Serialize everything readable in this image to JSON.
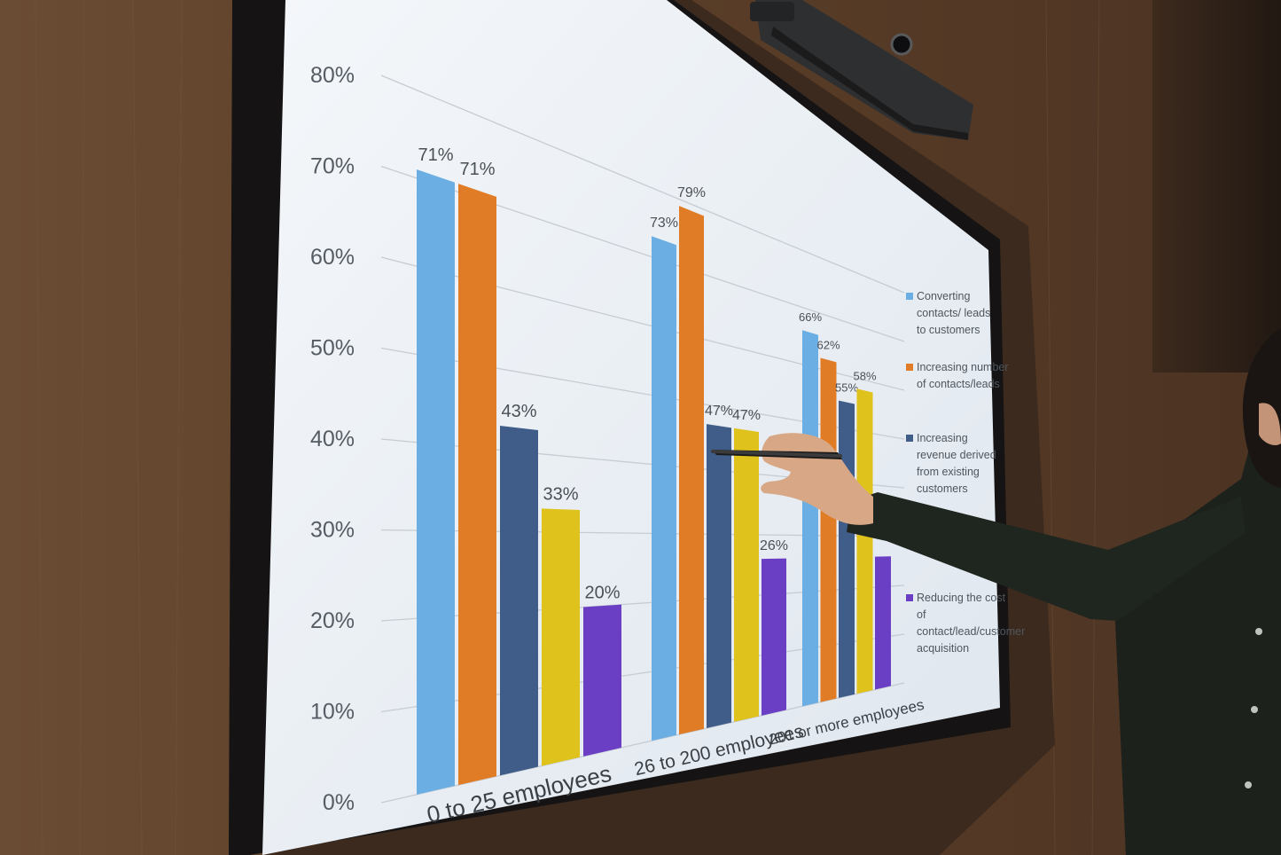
{
  "scene": {
    "description_colors": {
      "wall": "#5b3f29",
      "bezel": "#151313",
      "screen": "#e9eef3",
      "shirt": "#1c211c",
      "skin": "#d8a886"
    }
  },
  "chart_data": {
    "type": "bar",
    "categories": [
      "0 to 25 employees",
      "26 to 200 employees",
      "201 or more employees"
    ],
    "series": [
      {
        "name": "Converting contacts/ leads to customers",
        "color": "#6aaee4",
        "values": [
          71,
          73,
          66
        ]
      },
      {
        "name": "Increasing number of contacts/leads",
        "color": "#e07c25",
        "values": [
          71,
          79,
          62
        ]
      },
      {
        "name": "Increasing revenue derived from existing customers",
        "color": "#3f5d88",
        "values": [
          43,
          47,
          55
        ]
      },
      {
        "name": "",
        "color": "#dfc31c",
        "values": [
          33,
          47,
          58
        ]
      },
      {
        "name": "Reducing the cost of contact/lead/customer acquisition",
        "color": "#6b3fc4",
        "values": [
          20,
          26,
          26
        ]
      }
    ],
    "data_labels": [
      [
        "71%",
        "71%",
        "43%",
        "33%",
        "20%"
      ],
      [
        "73%",
        "79%",
        "47%",
        "47%",
        "26%"
      ],
      [
        "66%",
        "62%",
        "55%",
        "58%",
        ""
      ]
    ],
    "y_ticks": [
      "0%",
      "10%",
      "20%",
      "30%",
      "40%",
      "50%",
      "60%",
      "70%",
      "80%"
    ],
    "ylim": [
      0,
      80
    ],
    "legend_position": "right",
    "grid": true
  }
}
